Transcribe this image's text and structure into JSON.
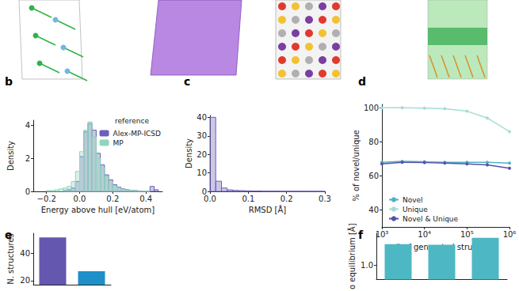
{
  "chart_data": [
    {
      "panel": "b",
      "type": "histogram",
      "xlabel": "Energy above hull [eV/atom]",
      "ylabel": "Density",
      "xlim": [
        -0.28,
        0.5
      ],
      "xticks": [
        {
          "value": -0.2,
          "label": "−0.2"
        },
        {
          "value": 0,
          "label": "0.0"
        },
        0.2,
        0.4
      ],
      "ylim": [
        0,
        4.3
      ],
      "yticks": [
        0,
        2,
        4
      ],
      "legend": "upper right",
      "legend_title": "reference",
      "bins": [
        -0.2,
        -0.175,
        -0.15,
        -0.125,
        -0.1,
        -0.075,
        -0.05,
        -0.025,
        0,
        0.025,
        0.05,
        0.075,
        0.1,
        0.125,
        0.15,
        0.175,
        0.2,
        0.225,
        0.25,
        0.275,
        0.3,
        0.325,
        0.35,
        0.375,
        0.4,
        0.425,
        0.45,
        0.475,
        0.5
      ],
      "series": [
        {
          "name": "Alex-MP-ICSD",
          "color": "#6c5fb8",
          "values": [
            0,
            0,
            0,
            0,
            0.05,
            0.1,
            0.2,
            0.6,
            2.1,
            3.6,
            4.1,
            3.7,
            2.3,
            1.6,
            1.0,
            0.7,
            0.4,
            0.25,
            0.15,
            0.1,
            0.05,
            0.05,
            0.03,
            0.02,
            0.02,
            0.3,
            0.1,
            0
          ]
        },
        {
          "name": "MP",
          "color": "#8fd6bb",
          "values": [
            0.05,
            0.05,
            0.1,
            0.15,
            0.2,
            0.3,
            0.6,
            1.2,
            2.4,
            3.7,
            4.2,
            3.3,
            2.0,
            1.4,
            0.9,
            0.6,
            0.3,
            0.2,
            0.12,
            0.08,
            0.05,
            0.03,
            0.02,
            0.02,
            0.01,
            0,
            0,
            0
          ]
        }
      ]
    },
    {
      "panel": "c",
      "type": "histogram",
      "xlabel": "RMSD [Å]",
      "ylabel": "Density",
      "xlim": [
        0,
        0.3
      ],
      "xticks": [
        {
          "value": 0,
          "label": "0.0"
        },
        0.1,
        0.2,
        0.3
      ],
      "ylim": [
        0,
        41
      ],
      "yticks": [
        0,
        10,
        20,
        30,
        40
      ],
      "bins": [
        0,
        0.015,
        0.03,
        0.045,
        0.06,
        0.075,
        0.09,
        0.105,
        0.12,
        0.135,
        0.15,
        0.165,
        0.18,
        0.195,
        0.21,
        0.225,
        0.24,
        0.255,
        0.27,
        0.285,
        0.3
      ],
      "series": [
        {
          "color": "#6c5fb8",
          "values": [
            40,
            5.5,
            1.8,
            0.8,
            0.5,
            0.4,
            0.3,
            0.2,
            0.2,
            0.1,
            0.1,
            0.1,
            0.05,
            0.05,
            0.05,
            0.05,
            0.03,
            0.03,
            0.03,
            0.03
          ]
        }
      ]
    },
    {
      "panel": "d",
      "type": "line",
      "log": "x",
      "marker": "circle",
      "xlabel": "# of generated structures",
      "ylabel": "% of novel/unique",
      "x": [
        1000,
        3000,
        10000,
        30000,
        100000,
        300000,
        1000000
      ],
      "xlim": [
        1000,
        1000000
      ],
      "xticks": [
        {
          "value": 1000,
          "label": "10³"
        },
        {
          "value": 10000,
          "label": "10⁴"
        },
        {
          "value": 100000,
          "label": "10⁵"
        },
        {
          "value": 1000000,
          "label": "10⁶"
        }
      ],
      "ylim": [
        30,
        102
      ],
      "yticks": [
        40,
        60,
        80,
        100
      ],
      "legend": "lower left",
      "series": [
        {
          "name": "Novel",
          "color": "#4fb3c6",
          "values": [
            68,
            68.5,
            68.3,
            68,
            68,
            68,
            67.5
          ]
        },
        {
          "name": "Unique",
          "color": "#a6dcd5",
          "values": [
            100,
            100,
            99.8,
            99.5,
            98,
            94,
            86
          ]
        },
        {
          "name": "Novel & Unique",
          "color": "#5b4fa6",
          "values": [
            67,
            68,
            67.8,
            67.5,
            67,
            66.5,
            64.5
          ]
        }
      ]
    },
    {
      "panel": "e",
      "type": "bar",
      "ylabel": "N. structures",
      "categories": [
        null,
        null
      ],
      "values": [
        52,
        27
      ],
      "colors": [
        "#6457b0",
        "#1f8fc8"
      ],
      "ylim": [
        17,
        55
      ],
      "yticks": [
        20,
        40
      ]
    },
    {
      "panel": "f",
      "type": "bar",
      "ylabel": "o equilibrium [Å]",
      "categories": [
        null,
        null,
        null
      ],
      "values": [
        1.36,
        1.35,
        1.47
      ],
      "color": "#4db8c4",
      "ylim": [
        0.75,
        1.55
      ],
      "yticks": [
        {
          "value": 1,
          "label": "1.0"
        }
      ]
    }
  ]
}
